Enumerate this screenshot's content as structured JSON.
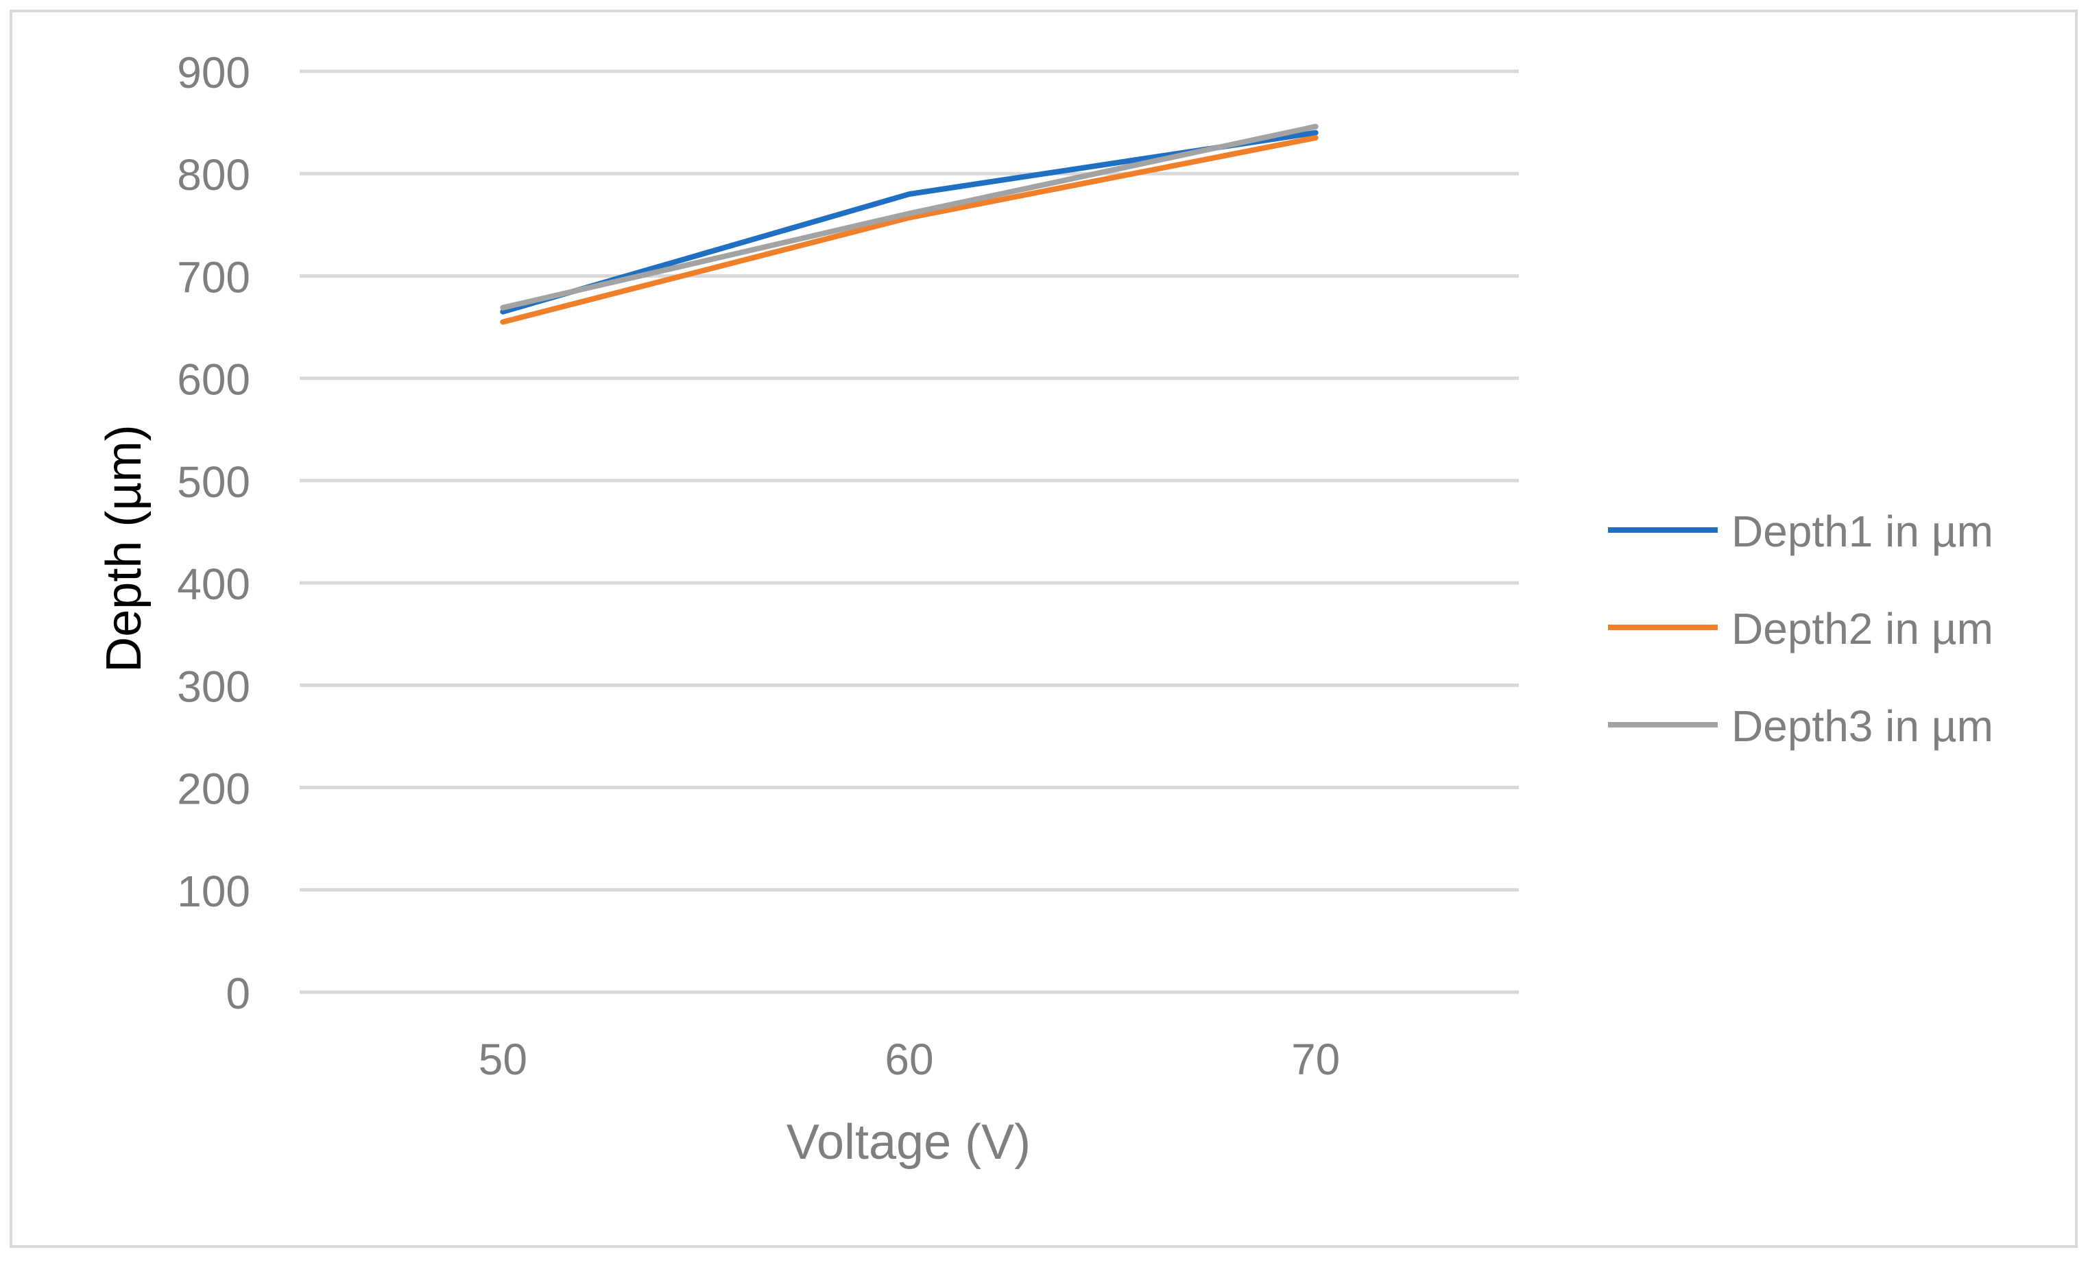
{
  "chart_data": {
    "type": "line",
    "title": "",
    "xlabel": "Voltage (V)",
    "ylabel": "Depth  (µm)",
    "categories": [
      "50",
      "60",
      "70"
    ],
    "ylim": [
      0,
      900
    ],
    "yticks": [
      "0",
      "100",
      "200",
      "300",
      "400",
      "500",
      "600",
      "700",
      "800",
      "900"
    ],
    "grid": "horizontal",
    "legend_position": "right",
    "series": [
      {
        "name": "Depth1 in µm",
        "color": "#1F6FC2",
        "values": [
          665,
          780,
          840
        ]
      },
      {
        "name": "Depth2 in µm",
        "color": "#F07F2A",
        "values": [
          655,
          757,
          835
        ]
      },
      {
        "name": "Depth3 in µm",
        "color": "#A3A3A3",
        "values": [
          669,
          761,
          846
        ]
      }
    ]
  }
}
